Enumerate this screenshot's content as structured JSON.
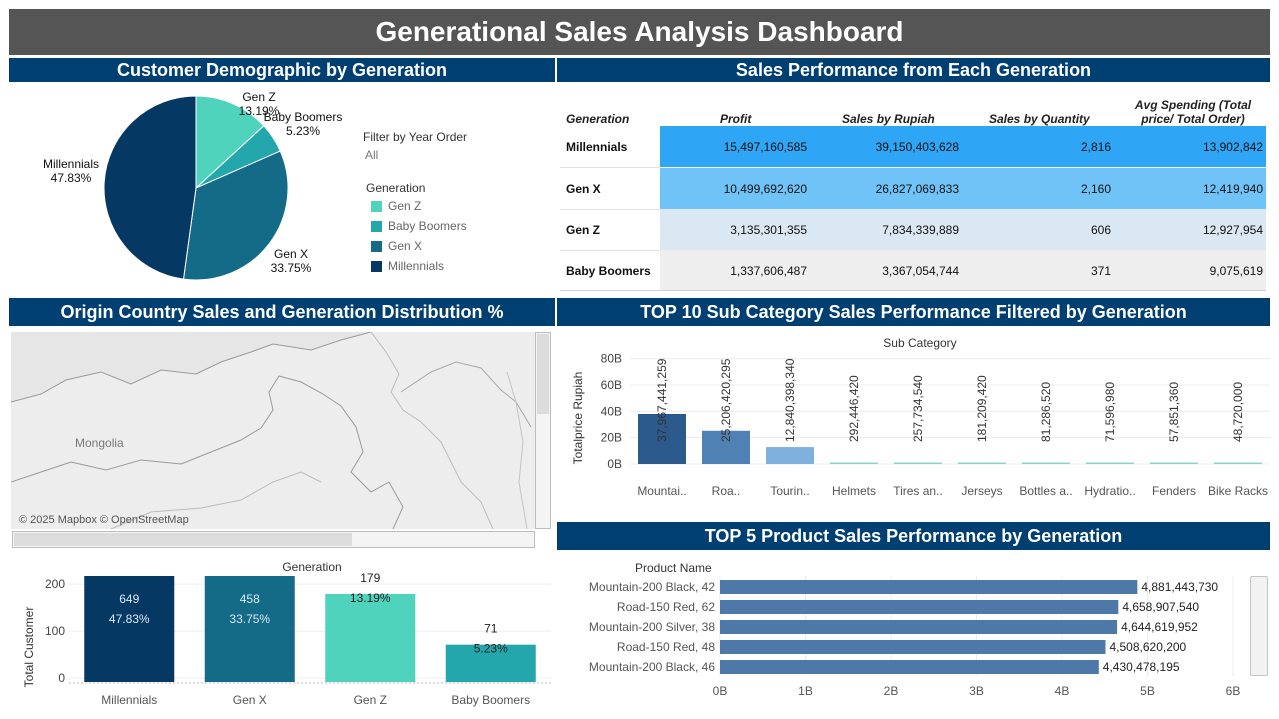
{
  "title": "Generational Sales Analysis Dashboard",
  "sections": {
    "demographic": "Customer Demographic by Generation",
    "performance": "Sales Performance from Each Generation",
    "country": "Origin Country Sales and Generation Distribution %",
    "subcategory": "TOP 10 Sub Category Sales Performance Filtered by Generation",
    "product": "TOP 5 Product Sales Performance by Generation"
  },
  "filter": {
    "label": "Filter by Year Order",
    "value": "All"
  },
  "legend": {
    "title": "Generation",
    "items": [
      {
        "label": "Gen Z",
        "color": "#4fd3bd"
      },
      {
        "label": "Baby Boomers",
        "color": "#24a7ac"
      },
      {
        "label": "Gen X",
        "color": "#136b87"
      },
      {
        "label": "Millennials",
        "color": "#063864"
      }
    ]
  },
  "table": {
    "headers": [
      "Generation",
      "Profit",
      "Sales by Rupiah",
      "Sales by Quantity",
      "Avg Spending (Total price/ Total Order)"
    ],
    "rows": [
      {
        "generation": "Millennials",
        "profit": "15,497,160,585",
        "sales": "39,150,403,628",
        "qty": "2,816",
        "avg": "13,902,842",
        "color": "#2fa6f5"
      },
      {
        "generation": "Gen X",
        "profit": "10,499,692,620",
        "sales": "26,827,069,833",
        "qty": "2,160",
        "avg": "12,419,940",
        "color": "#70c3f7"
      },
      {
        "generation": "Gen Z",
        "profit": "3,135,301,355",
        "sales": "7,834,339,889",
        "qty": "606",
        "avg": "12,927,954",
        "color": "#dbe8f3"
      },
      {
        "generation": "Baby Boomers",
        "profit": "1,337,606,487",
        "sales": "3,367,054,744",
        "qty": "371",
        "avg": "9,075,619",
        "color": "#eeeeee"
      }
    ]
  },
  "map": {
    "label": "Mongolia",
    "attribution": "© 2025 Mapbox © OpenStreetMap"
  },
  "chart_data": [
    {
      "type": "pie",
      "slices": [
        {
          "label": "Gen Z",
          "pct": 13.19,
          "pct_label": "13.19%",
          "color": "#4fd3bd"
        },
        {
          "label": "Baby Boomers",
          "pct": 5.23,
          "pct_label": "5.23%",
          "color": "#24a7ac"
        },
        {
          "label": "Gen X",
          "pct": 33.75,
          "pct_label": "33.75%",
          "color": "#136b87"
        },
        {
          "label": "Millennials",
          "pct": 47.83,
          "pct_label": "47.83%",
          "color": "#063864"
        }
      ]
    },
    {
      "type": "bar",
      "title": "Generation",
      "ylabel": "Total Customer",
      "ylim": [
        0,
        260
      ],
      "yticks": [
        "0",
        "100",
        "200"
      ],
      "ytick_values": [
        0,
        100,
        200
      ],
      "categories": [
        "Millennials",
        "Gen X",
        "Gen Z",
        "Baby Boomers"
      ],
      "values": [
        649,
        458,
        179,
        71
      ],
      "value_labels": [
        "649",
        "458",
        "179",
        "71"
      ],
      "pct_labels": [
        "47.83%",
        "33.75%",
        "13.19%",
        "5.23%"
      ],
      "colors": [
        "#063864",
        "#136b87",
        "#4fd3bd",
        "#24a7ac"
      ]
    },
    {
      "type": "bar",
      "title": "Sub Category",
      "ylabel": "Totalprice Rupiah",
      "ylim": [
        0,
        85000000000
      ],
      "yticks": [
        "0B",
        "20B",
        "40B",
        "60B",
        "80B"
      ],
      "ytick_values": [
        0,
        20000000000,
        40000000000,
        60000000000,
        80000000000
      ],
      "categories": [
        "Mountai..",
        "Roa..",
        "Tourin..",
        "Helmets",
        "Tires an..",
        "Jerseys",
        "Bottles a..",
        "Hydratio..",
        "Fenders",
        "Bike Racks"
      ],
      "values": [
        37967441259,
        25206420295,
        12840398340,
        292446420,
        257734540,
        181209420,
        81286520,
        71596980,
        57851360,
        48720000
      ],
      "value_labels": [
        "37,967,441,259",
        "25,206,420,295",
        "12,840,398,340",
        "292,446,420",
        "257,734,540",
        "181,209,420",
        "81,286,520",
        "71,596,980",
        "57,851,360",
        "48,720,000"
      ],
      "colors": [
        "#2d5a8c",
        "#4f81b5",
        "#7fb0de",
        "#8ed1c8",
        "#8ed1c8",
        "#8ed1c8",
        "#8ed1c8",
        "#8ed1c8",
        "#8ed1c8",
        "#8ed1c8"
      ]
    },
    {
      "type": "bar",
      "orientation": "horizontal",
      "ylabel": "Product Name",
      "xlim": [
        0,
        6000000000
      ],
      "xticks": [
        "0B",
        "1B",
        "2B",
        "3B",
        "4B",
        "5B",
        "6B"
      ],
      "xtick_values": [
        0,
        1000000000,
        2000000000,
        3000000000,
        4000000000,
        5000000000,
        6000000000
      ],
      "categories": [
        "Mountain-200 Black, 42",
        "Road-150 Red, 62",
        "Mountain-200 Silver, 38",
        "Road-150 Red, 48",
        "Mountain-200 Black, 46"
      ],
      "values": [
        4881443730,
        4658907540,
        4644619952,
        4508620200,
        4430478195
      ],
      "value_labels": [
        "4,881,443,730",
        "4,658,907,540",
        "4,644,619,952",
        "4,508,620,200",
        "4,430,478,195"
      ],
      "color": "#4e78a8"
    }
  ]
}
